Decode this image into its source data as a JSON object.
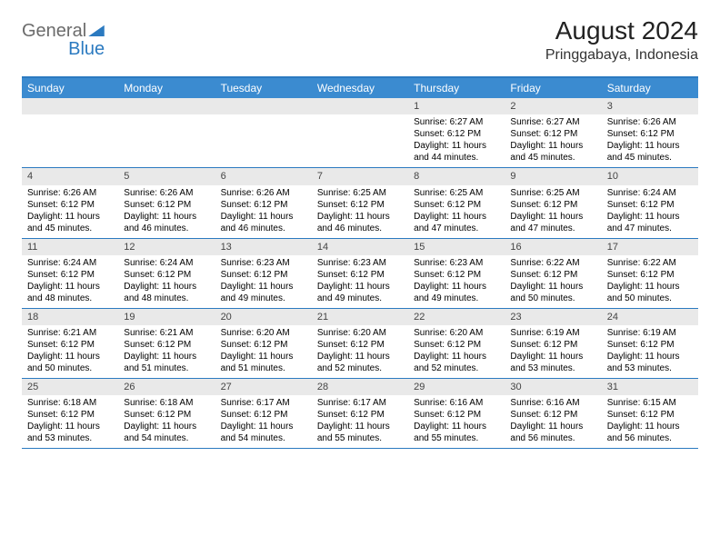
{
  "brand": {
    "part1": "General",
    "part2": "Blue"
  },
  "title": "August 2024",
  "location": "Pringgabaya, Indonesia",
  "colors": {
    "header_bg": "#3b8bd0",
    "border": "#2b7ac0",
    "daynum_bg": "#e9e9e9",
    "text": "#000000"
  },
  "day_names": [
    "Sunday",
    "Monday",
    "Tuesday",
    "Wednesday",
    "Thursday",
    "Friday",
    "Saturday"
  ],
  "weeks": [
    [
      null,
      null,
      null,
      null,
      {
        "n": "1",
        "sr": "Sunrise: 6:27 AM",
        "ss": "Sunset: 6:12 PM",
        "d1": "Daylight: 11 hours",
        "d2": "and 44 minutes."
      },
      {
        "n": "2",
        "sr": "Sunrise: 6:27 AM",
        "ss": "Sunset: 6:12 PM",
        "d1": "Daylight: 11 hours",
        "d2": "and 45 minutes."
      },
      {
        "n": "3",
        "sr": "Sunrise: 6:26 AM",
        "ss": "Sunset: 6:12 PM",
        "d1": "Daylight: 11 hours",
        "d2": "and 45 minutes."
      }
    ],
    [
      {
        "n": "4",
        "sr": "Sunrise: 6:26 AM",
        "ss": "Sunset: 6:12 PM",
        "d1": "Daylight: 11 hours",
        "d2": "and 45 minutes."
      },
      {
        "n": "5",
        "sr": "Sunrise: 6:26 AM",
        "ss": "Sunset: 6:12 PM",
        "d1": "Daylight: 11 hours",
        "d2": "and 46 minutes."
      },
      {
        "n": "6",
        "sr": "Sunrise: 6:26 AM",
        "ss": "Sunset: 6:12 PM",
        "d1": "Daylight: 11 hours",
        "d2": "and 46 minutes."
      },
      {
        "n": "7",
        "sr": "Sunrise: 6:25 AM",
        "ss": "Sunset: 6:12 PM",
        "d1": "Daylight: 11 hours",
        "d2": "and 46 minutes."
      },
      {
        "n": "8",
        "sr": "Sunrise: 6:25 AM",
        "ss": "Sunset: 6:12 PM",
        "d1": "Daylight: 11 hours",
        "d2": "and 47 minutes."
      },
      {
        "n": "9",
        "sr": "Sunrise: 6:25 AM",
        "ss": "Sunset: 6:12 PM",
        "d1": "Daylight: 11 hours",
        "d2": "and 47 minutes."
      },
      {
        "n": "10",
        "sr": "Sunrise: 6:24 AM",
        "ss": "Sunset: 6:12 PM",
        "d1": "Daylight: 11 hours",
        "d2": "and 47 minutes."
      }
    ],
    [
      {
        "n": "11",
        "sr": "Sunrise: 6:24 AM",
        "ss": "Sunset: 6:12 PM",
        "d1": "Daylight: 11 hours",
        "d2": "and 48 minutes."
      },
      {
        "n": "12",
        "sr": "Sunrise: 6:24 AM",
        "ss": "Sunset: 6:12 PM",
        "d1": "Daylight: 11 hours",
        "d2": "and 48 minutes."
      },
      {
        "n": "13",
        "sr": "Sunrise: 6:23 AM",
        "ss": "Sunset: 6:12 PM",
        "d1": "Daylight: 11 hours",
        "d2": "and 49 minutes."
      },
      {
        "n": "14",
        "sr": "Sunrise: 6:23 AM",
        "ss": "Sunset: 6:12 PM",
        "d1": "Daylight: 11 hours",
        "d2": "and 49 minutes."
      },
      {
        "n": "15",
        "sr": "Sunrise: 6:23 AM",
        "ss": "Sunset: 6:12 PM",
        "d1": "Daylight: 11 hours",
        "d2": "and 49 minutes."
      },
      {
        "n": "16",
        "sr": "Sunrise: 6:22 AM",
        "ss": "Sunset: 6:12 PM",
        "d1": "Daylight: 11 hours",
        "d2": "and 50 minutes."
      },
      {
        "n": "17",
        "sr": "Sunrise: 6:22 AM",
        "ss": "Sunset: 6:12 PM",
        "d1": "Daylight: 11 hours",
        "d2": "and 50 minutes."
      }
    ],
    [
      {
        "n": "18",
        "sr": "Sunrise: 6:21 AM",
        "ss": "Sunset: 6:12 PM",
        "d1": "Daylight: 11 hours",
        "d2": "and 50 minutes."
      },
      {
        "n": "19",
        "sr": "Sunrise: 6:21 AM",
        "ss": "Sunset: 6:12 PM",
        "d1": "Daylight: 11 hours",
        "d2": "and 51 minutes."
      },
      {
        "n": "20",
        "sr": "Sunrise: 6:20 AM",
        "ss": "Sunset: 6:12 PM",
        "d1": "Daylight: 11 hours",
        "d2": "and 51 minutes."
      },
      {
        "n": "21",
        "sr": "Sunrise: 6:20 AM",
        "ss": "Sunset: 6:12 PM",
        "d1": "Daylight: 11 hours",
        "d2": "and 52 minutes."
      },
      {
        "n": "22",
        "sr": "Sunrise: 6:20 AM",
        "ss": "Sunset: 6:12 PM",
        "d1": "Daylight: 11 hours",
        "d2": "and 52 minutes."
      },
      {
        "n": "23",
        "sr": "Sunrise: 6:19 AM",
        "ss": "Sunset: 6:12 PM",
        "d1": "Daylight: 11 hours",
        "d2": "and 53 minutes."
      },
      {
        "n": "24",
        "sr": "Sunrise: 6:19 AM",
        "ss": "Sunset: 6:12 PM",
        "d1": "Daylight: 11 hours",
        "d2": "and 53 minutes."
      }
    ],
    [
      {
        "n": "25",
        "sr": "Sunrise: 6:18 AM",
        "ss": "Sunset: 6:12 PM",
        "d1": "Daylight: 11 hours",
        "d2": "and 53 minutes."
      },
      {
        "n": "26",
        "sr": "Sunrise: 6:18 AM",
        "ss": "Sunset: 6:12 PM",
        "d1": "Daylight: 11 hours",
        "d2": "and 54 minutes."
      },
      {
        "n": "27",
        "sr": "Sunrise: 6:17 AM",
        "ss": "Sunset: 6:12 PM",
        "d1": "Daylight: 11 hours",
        "d2": "and 54 minutes."
      },
      {
        "n": "28",
        "sr": "Sunrise: 6:17 AM",
        "ss": "Sunset: 6:12 PM",
        "d1": "Daylight: 11 hours",
        "d2": "and 55 minutes."
      },
      {
        "n": "29",
        "sr": "Sunrise: 6:16 AM",
        "ss": "Sunset: 6:12 PM",
        "d1": "Daylight: 11 hours",
        "d2": "and 55 minutes."
      },
      {
        "n": "30",
        "sr": "Sunrise: 6:16 AM",
        "ss": "Sunset: 6:12 PM",
        "d1": "Daylight: 11 hours",
        "d2": "and 56 minutes."
      },
      {
        "n": "31",
        "sr": "Sunrise: 6:15 AM",
        "ss": "Sunset: 6:12 PM",
        "d1": "Daylight: 11 hours",
        "d2": "and 56 minutes."
      }
    ]
  ]
}
